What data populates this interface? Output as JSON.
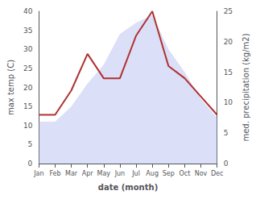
{
  "chart_data": {
    "type": "line",
    "xlabel": "date (month)",
    "ylabel": "max temp (C)",
    "y2label": "med. precipitation (kg/m2)",
    "categories": [
      "Jan",
      "Feb",
      "Mar",
      "Apr",
      "May",
      "Jun",
      "Jul",
      "Aug",
      "Sep",
      "Oct",
      "Nov",
      "Dec"
    ],
    "series": [
      {
        "type": "area",
        "color": "#b0b8ee",
        "values": [
          11,
          11,
          15,
          21,
          26,
          34,
          37,
          39,
          30,
          24,
          17,
          12
        ]
      },
      {
        "type": "line",
        "color": "#b03030",
        "axis": "y2",
        "values": [
          8,
          8,
          12,
          18,
          14,
          14,
          21,
          25,
          16,
          14,
          11,
          8
        ]
      }
    ],
    "ylim": [
      0,
      40
    ],
    "yticks": [
      0,
      5,
      10,
      15,
      20,
      25,
      30,
      35,
      40
    ],
    "y2lim": [
      0,
      25
    ],
    "y2ticks": [
      0,
      5,
      10,
      15,
      20,
      25
    ],
    "grid": false
  }
}
